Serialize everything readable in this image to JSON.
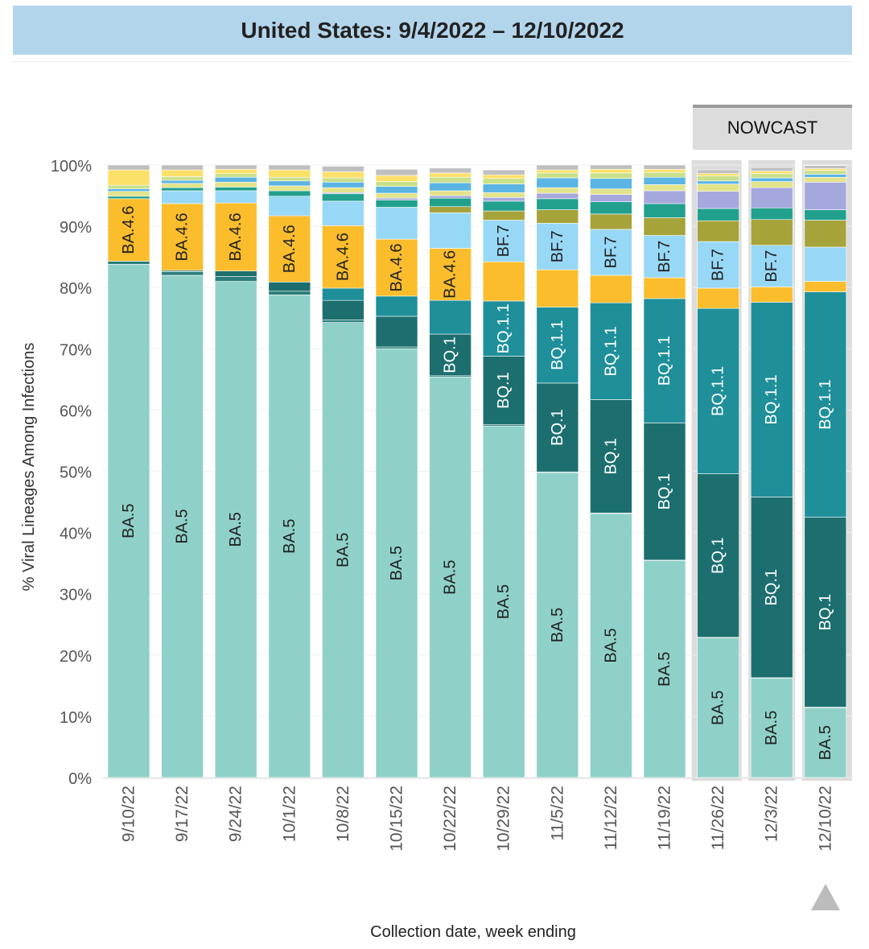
{
  "title": "United States: 9/4/2022 – 12/10/2022",
  "nowcast_label": "NOWCAST",
  "colors": {
    "BA.5": "#8fd1c9",
    "BQ.1": "#1d6f6f",
    "BQ.1.1": "#1f8f9a",
    "BA.4.6": "#fbbd2c",
    "BF.7": "#98d8f7",
    "other_teal_dark": "#2a7d7a",
    "other_olive": "#a6a33a",
    "other_green": "#21a08e",
    "other_lavender": "#a5a8dc",
    "other_lightyellow": "#e3e38a",
    "other_blue": "#5ab4e4",
    "other_gray": "#bfbfbf",
    "nowcast_band": "#dcdcdc"
  },
  "chart_data": {
    "type": "bar",
    "stacked": true,
    "title": "United States: 9/4/2022 – 12/10/2022",
    "xlabel": "Collection date, week ending",
    "ylabel": "% Viral Lineages Among Infections",
    "ylim": [
      0,
      100
    ],
    "y_ticks": [
      "0%",
      "10%",
      "20%",
      "30%",
      "40%",
      "50%",
      "60%",
      "70%",
      "80%",
      "90%",
      "100%"
    ],
    "categories": [
      "9/10/22",
      "9/17/22",
      "9/24/22",
      "10/1/22",
      "10/8/22",
      "10/15/22",
      "10/22/22",
      "10/29/22",
      "11/5/22",
      "11/12/22",
      "11/19/22",
      "11/26/22",
      "12/3/22",
      "12/10/22"
    ],
    "nowcast_categories": [
      "11/26/22",
      "12/3/22",
      "12/10/22"
    ],
    "series": [
      {
        "name": "BA.5",
        "color": "#8fd1c9",
        "text_color": "#222222",
        "label_min": 8,
        "values": [
          83.8,
          82.0,
          81.0,
          78.8,
          74.3,
          70.0,
          65.4,
          57.4,
          49.8,
          43.1,
          35.4,
          22.8,
          16.2,
          11.4
        ]
      },
      {
        "name": "",
        "color": "#2a7d7a",
        "text_color": "#222222",
        "label_min": 999,
        "values": [
          0.5,
          0.6,
          0.8,
          0.6,
          0.4,
          0.3,
          0.2,
          0.2,
          0.1,
          0.1,
          0.1,
          0.1,
          0.1,
          0.1
        ]
      },
      {
        "name": "BQ.1",
        "color": "#1d6f6f",
        "text_color": "#ffffff",
        "label_min": 6,
        "values": [
          0.0,
          0.2,
          0.9,
          1.5,
          3.2,
          5.0,
          6.8,
          11.2,
          14.5,
          18.5,
          22.4,
          26.7,
          29.5,
          31.0
        ]
      },
      {
        "name": "BQ.1.1",
        "color": "#1f8f9a",
        "text_color": "#ffffff",
        "label_min": 8,
        "values": [
          0.0,
          0.0,
          0.0,
          0.0,
          2.0,
          3.3,
          5.5,
          9.0,
          12.4,
          15.8,
          20.3,
          27.0,
          31.8,
          36.8
        ]
      },
      {
        "name": "BA.4.6",
        "color": "#fbbd2c",
        "text_color": "#222222",
        "label_min": 8,
        "values": [
          10.2,
          10.9,
          11.1,
          10.8,
          10.2,
          9.3,
          8.5,
          6.4,
          6.1,
          4.5,
          3.4,
          3.3,
          2.5,
          1.7
        ]
      },
      {
        "name": "BF.7",
        "color": "#98d8f7",
        "text_color": "#222222",
        "label_min": 6,
        "values": [
          0.0,
          2.1,
          2.0,
          3.2,
          4.0,
          5.2,
          5.8,
          6.8,
          7.6,
          7.5,
          6.9,
          7.6,
          6.8,
          5.6
        ]
      },
      {
        "name": "",
        "color": "#a6a33a",
        "text_color": "#222222",
        "label_min": 999,
        "values": [
          0.0,
          0.0,
          0.0,
          0.0,
          0.0,
          0.0,
          1.0,
          1.5,
          2.2,
          2.5,
          2.9,
          3.4,
          4.2,
          4.4
        ]
      },
      {
        "name": "",
        "color": "#21a08e",
        "text_color": "#222222",
        "label_min": 999,
        "values": [
          0.4,
          0.5,
          0.6,
          0.9,
          1.2,
          1.2,
          1.4,
          1.6,
          1.8,
          2.0,
          2.3,
          2.0,
          1.9,
          1.7
        ]
      },
      {
        "name": "",
        "color": "#a5a8dc",
        "text_color": "#222222",
        "label_min": 999,
        "values": [
          0.0,
          0.0,
          0.0,
          0.0,
          0.2,
          0.3,
          0.4,
          0.6,
          0.9,
          1.2,
          2.1,
          2.8,
          3.3,
          4.5
        ]
      },
      {
        "name": "",
        "color": "#e3e38a",
        "text_color": "#222222",
        "label_min": 999,
        "values": [
          0.8,
          0.7,
          0.8,
          0.8,
          0.8,
          0.8,
          0.8,
          0.8,
          0.9,
          0.9,
          1.0,
          1.2,
          1.0,
          0.8
        ]
      },
      {
        "name": "",
        "color": "#5ab4e4",
        "text_color": "#222222",
        "label_min": 999,
        "values": [
          0.4,
          0.5,
          0.8,
          0.8,
          0.9,
          1.1,
          1.3,
          1.4,
          1.6,
          1.7,
          1.2,
          0.5,
          0.6,
          0.5
        ]
      },
      {
        "name": "",
        "color": "#c9e08a",
        "text_color": "#222222",
        "label_min": 999,
        "values": [
          0.6,
          0.6,
          0.6,
          0.6,
          0.7,
          0.8,
          0.9,
          0.9,
          0.8,
          0.9,
          0.8,
          0.8,
          0.7,
          0.6
        ]
      },
      {
        "name": "",
        "color": "#fde06a",
        "text_color": "#222222",
        "label_min": 999,
        "values": [
          2.5,
          1.1,
          0.7,
          1.2,
          1.0,
          1.0,
          0.7,
          0.6,
          0.5,
          0.6,
          0.5,
          0.4,
          0.4,
          0.3
        ]
      },
      {
        "name": "",
        "color": "#bfbfbf",
        "text_color": "#222222",
        "label_min": 999,
        "values": [
          0.8,
          0.8,
          0.7,
          0.8,
          0.9,
          1.0,
          0.8,
          0.8,
          0.8,
          0.7,
          0.7,
          0.6,
          0.6,
          0.5
        ]
      }
    ]
  }
}
